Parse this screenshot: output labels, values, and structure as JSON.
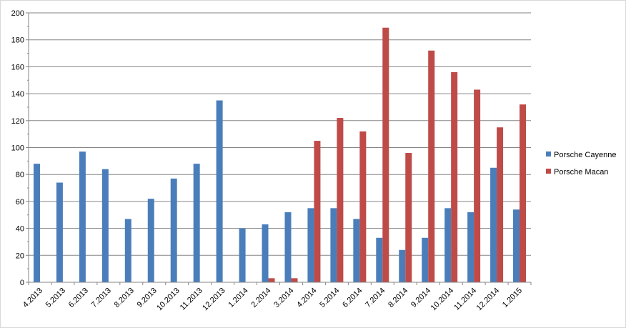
{
  "chart_data": {
    "type": "bar",
    "title": "",
    "xlabel": "",
    "ylabel": "",
    "ylim": [
      0,
      200
    ],
    "yticks": [
      0,
      20,
      40,
      60,
      80,
      100,
      120,
      140,
      160,
      180,
      200
    ],
    "grid": true,
    "legend_position": "right",
    "categories": [
      "4.2013",
      "5.2013",
      "6.2013",
      "7.2013",
      "8.2013",
      "9.2013",
      "10.2013",
      "11.2013",
      "12.2013",
      "1.2014",
      "2.2014",
      "3.2014",
      "4.2014",
      "5.2014",
      "6.2014",
      "7.2014",
      "8.2014",
      "9.2014",
      "10.2014",
      "11.2014",
      "12.2014",
      "1.2015"
    ],
    "series": [
      {
        "name": "Porsche Cayenne",
        "color": "#4a7ebb",
        "values": [
          88,
          74,
          97,
          84,
          47,
          62,
          77,
          88,
          135,
          40,
          43,
          52,
          55,
          55,
          47,
          33,
          24,
          33,
          55,
          52,
          85,
          54
        ]
      },
      {
        "name": "Porsche Macan",
        "color": "#be4b48",
        "values": [
          0,
          0,
          0,
          0,
          0,
          0,
          0,
          0,
          0,
          0,
          3,
          3,
          105,
          122,
          112,
          189,
          96,
          172,
          156,
          143,
          115,
          132
        ]
      }
    ]
  }
}
